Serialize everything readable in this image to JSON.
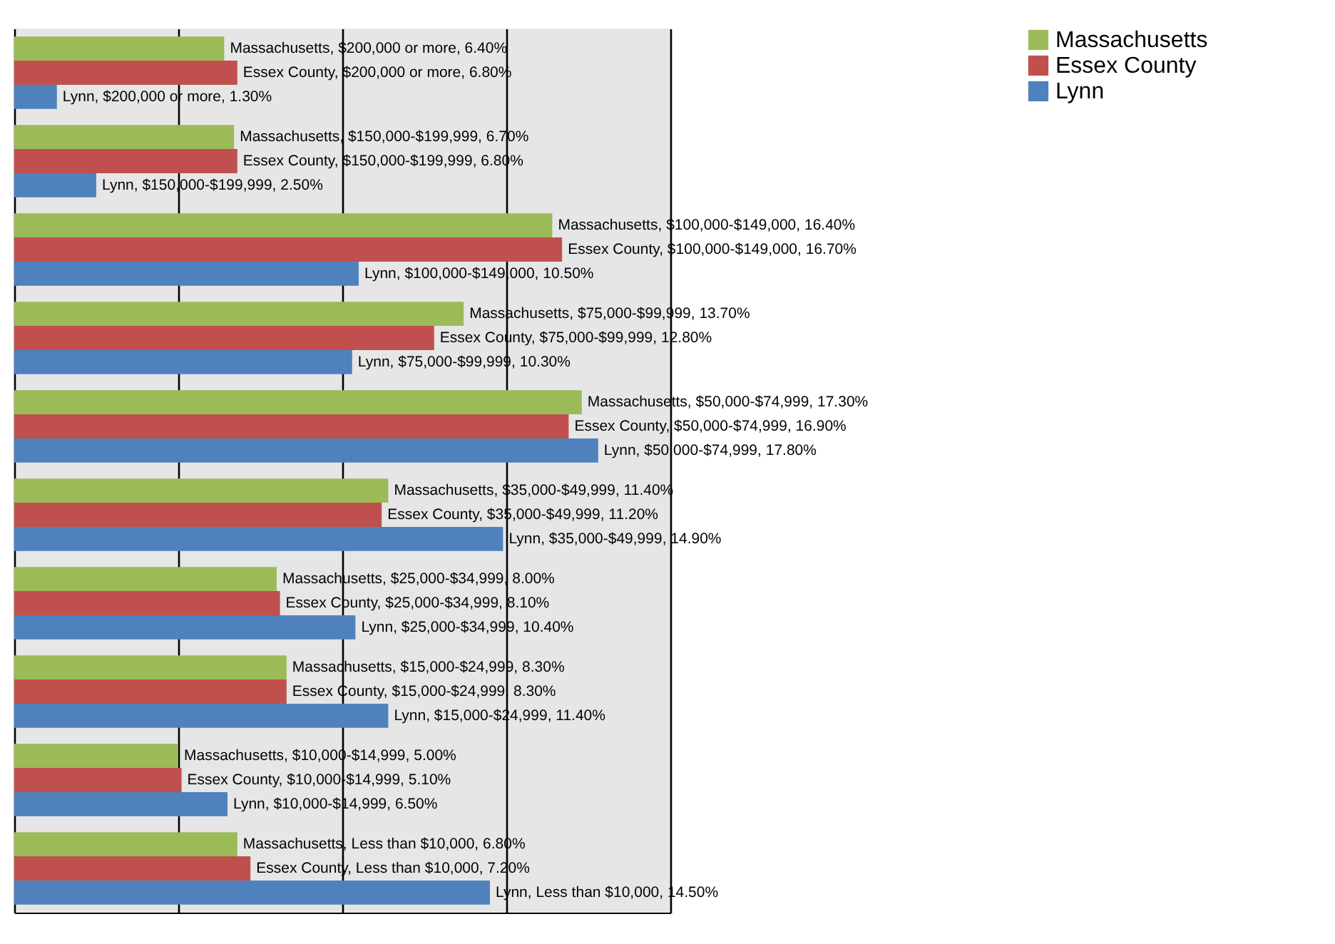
{
  "chart_data": {
    "type": "bar",
    "orientation": "horizontal",
    "categories": [
      null,
      null,
      null,
      null,
      null,
      null,
      null,
      null,
      null,
      null
    ],
    "series": [
      {
        "name": "Massachusetts",
        "color": "#9bbb59",
        "values": [
          6.4,
          6.7,
          16.4,
          13.7,
          17.3,
          11.4,
          8.0,
          8.3,
          5.0,
          6.8
        ],
        "value_labels": [
          "Massachusetts, $200,000 or more, 6.40%",
          "Massachusetts, $150,000-$199,999, 6.70%",
          "Massachusetts, $100,000-$149,000, 16.40%",
          "Massachusetts, $75,000-$99,999, 13.70%",
          "Massachusetts, $50,000-$74,999, 17.30%",
          "Massachusetts, $35,000-$49,999, 11.40%",
          "Massachusetts, $25,000-$34,999, 8.00%",
          "Massachusetts, $15,000-$24,999, 8.30%",
          "Massachusetts, $10,000-$14,999, 5.00%",
          "Massachusetts, Less than $10,000, 6.80%"
        ]
      },
      {
        "name": "Essex County",
        "color": "#c0504d",
        "values": [
          6.8,
          6.8,
          16.7,
          12.8,
          16.9,
          11.2,
          8.1,
          8.3,
          5.1,
          7.2
        ],
        "value_labels": [
          "Essex County, $200,000 or more, 6.80%",
          "Essex County, $150,000-$199,999, 6.80%",
          "Essex County, $100,000-$149,000, 16.70%",
          "Essex County, $75,000-$99,999, 12.80%",
          "Essex County, $50,000-$74,999, 16.90%",
          "Essex County, $35,000-$49,999, 11.20%",
          "Essex County, $25,000-$34,999, 8.10%",
          "Essex County, $15,000-$24,999, 8.30%",
          "Essex County, $10,000-$14,999, 5.10%",
          "Essex County, Less than $10,000, 7.20%"
        ]
      },
      {
        "name": "Lynn",
        "color": "#4f81bd",
        "values": [
          1.3,
          2.5,
          10.5,
          10.3,
          17.8,
          14.9,
          10.4,
          11.4,
          6.5,
          14.5
        ],
        "value_labels": [
          "Lynn, $200,000 or more, 1.30%",
          "Lynn, $150,000-$199,999, 2.50%",
          "Lynn, $100,000-$149,000, 10.50%",
          "Lynn, $75,000-$99,999, 10.30%",
          "Lynn, $50,000-$74,999, 17.80%",
          "Lynn, $35,000-$49,999, 14.90%",
          "Lynn, $25,000-$34,999, 10.40%",
          "Lynn, $15,000-$24,999, 11.40%",
          "Lynn, $10,000-$14,999, 6.50%",
          "Lynn, Less than $10,000, 14.50%"
        ]
      }
    ],
    "xlim": [
      0,
      20
    ],
    "xticks": [
      {
        "value": 0,
        "label": null
      },
      {
        "value": 5,
        "label": null
      },
      {
        "value": 10,
        "label": null
      },
      {
        "value": 15,
        "label": null
      },
      {
        "value": 20,
        "label": null
      }
    ],
    "grid": "x",
    "legend": "right",
    "tick_labels": false
  }
}
